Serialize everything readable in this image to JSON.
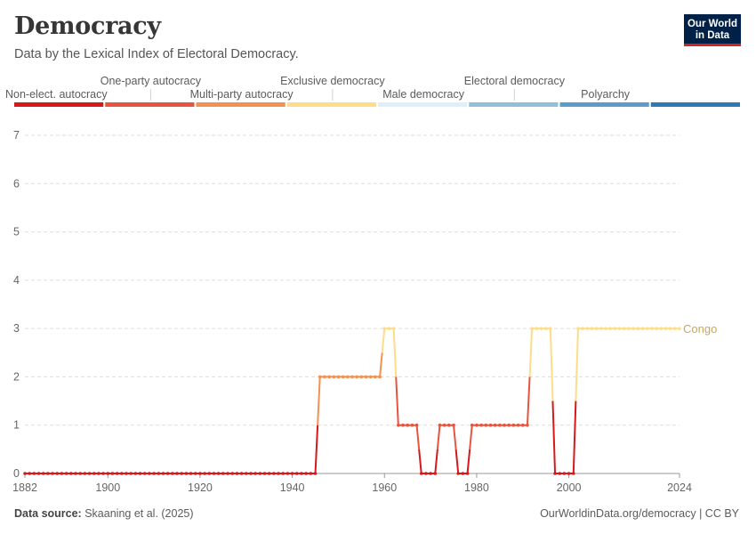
{
  "header": {
    "title": "Democracy",
    "subtitle": "Data by the Lexical Index of Electoral Democracy."
  },
  "logo": {
    "line1": "Our World",
    "line2": "in Data"
  },
  "footer": {
    "source_label": "Data source:",
    "source_text": "Skaaning et al. (2025)",
    "right_text": "OurWorldinData.org/democracy | CC BY"
  },
  "legend": {
    "categories": [
      {
        "label": "Non-elect. autocracy",
        "color": "#d7191c",
        "row": "lower"
      },
      {
        "label": "One-party autocracy",
        "color": "#e8553e",
        "row": "upper"
      },
      {
        "label": "Multi-party autocracy",
        "color": "#f59053",
        "row": "lower"
      },
      {
        "label": "Exclusive democracy",
        "color": "#fddd8a",
        "row": "upper"
      },
      {
        "label": "Male democracy",
        "color": "#ddeffa",
        "row": "lower"
      },
      {
        "label": "Electoral democracy",
        "color": "#8fbfd9",
        "row": "upper"
      },
      {
        "label": "Polyarchy",
        "color": "#5a9ccb",
        "row": "lower"
      },
      {
        "label": "",
        "color": "#2c7bb6",
        "row": "lower"
      }
    ]
  },
  "chart_data": {
    "type": "line",
    "title": "Democracy",
    "subtitle": "Data by the Lexical Index of Electoral Democracy.",
    "xlim": [
      1882,
      2024
    ],
    "ylim": [
      0,
      7
    ],
    "x_ticks": [
      1882,
      1900,
      1920,
      1940,
      1960,
      1980,
      2000,
      2024
    ],
    "y_ticks": [
      0,
      1,
      2,
      3,
      4,
      5,
      6,
      7
    ],
    "grid": "horizontal dashed",
    "series": [
      {
        "name": "Congo",
        "segments": [
          {
            "start": 1882,
            "end": 1945,
            "value": 0
          },
          {
            "start": 1946,
            "end": 1959,
            "value": 2
          },
          {
            "start": 1960,
            "end": 1962,
            "value": 3
          },
          {
            "start": 1963,
            "end": 1967,
            "value": 1
          },
          {
            "start": 1968,
            "end": 1971,
            "value": 0
          },
          {
            "start": 1972,
            "end": 1975,
            "value": 1
          },
          {
            "start": 1976,
            "end": 1978,
            "value": 0
          },
          {
            "start": 1979,
            "end": 1991,
            "value": 1
          },
          {
            "start": 1992,
            "end": 1996,
            "value": 3
          },
          {
            "start": 1997,
            "end": 2001,
            "value": 0
          },
          {
            "start": 2002,
            "end": 2024,
            "value": 3
          }
        ]
      }
    ]
  }
}
